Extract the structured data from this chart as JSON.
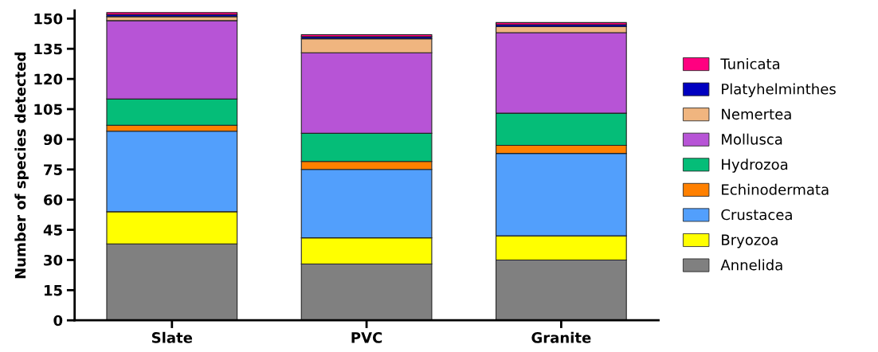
{
  "chart_data": {
    "type": "bar",
    "stacked": true,
    "ylabel": "Number of species detected",
    "categories": [
      "Slate",
      "PVC",
      "Granite"
    ],
    "ylim": [
      0,
      154
    ],
    "yticks": [
      0,
      15,
      30,
      45,
      60,
      75,
      90,
      105,
      120,
      135,
      150
    ],
    "legend": "right",
    "grid": false,
    "series": [
      {
        "name": "Annelida",
        "color": "#808080",
        "values": [
          38,
          28,
          30
        ]
      },
      {
        "name": "Bryozoa",
        "color": "#ffff00",
        "values": [
          16,
          13,
          12
        ]
      },
      {
        "name": "Crustacea",
        "color": "#529ffc",
        "values": [
          40,
          34,
          41
        ]
      },
      {
        "name": "Echinodermata",
        "color": "#ff8000",
        "values": [
          3,
          4,
          4
        ]
      },
      {
        "name": "Hydrozoa",
        "color": "#05bd78",
        "values": [
          13,
          14,
          16
        ]
      },
      {
        "name": "Mollusca",
        "color": "#b754d6",
        "values": [
          39,
          40,
          40
        ]
      },
      {
        "name": "Nemertea",
        "color": "#f0b57f",
        "values": [
          2,
          7,
          3
        ]
      },
      {
        "name": "Platyhelminthes",
        "color": "#0000c0",
        "values": [
          1,
          1,
          1
        ]
      },
      {
        "name": "Tunicata",
        "color": "#ff0080",
        "values": [
          1,
          1,
          1
        ]
      }
    ]
  }
}
